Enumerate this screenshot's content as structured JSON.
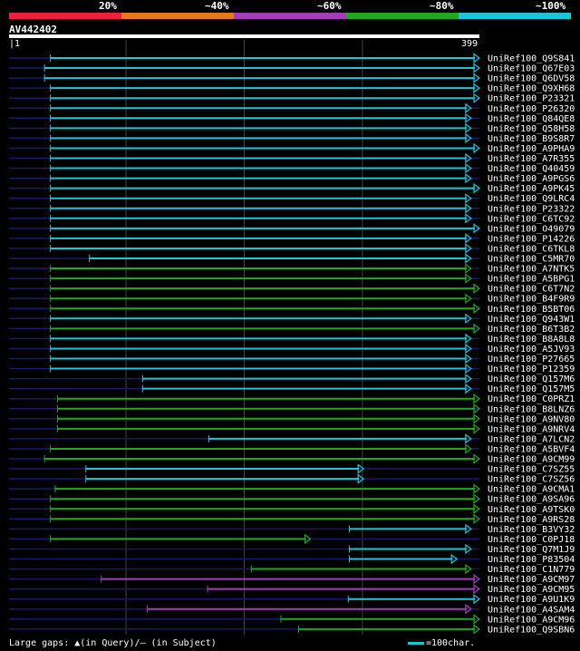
{
  "legend": {
    "segments": [
      {
        "color": "#ef1f3c",
        "label": "20%"
      },
      {
        "color": "#e8781e",
        "label": "~40%"
      },
      {
        "color": "#a33fb6",
        "label": "~60%"
      },
      {
        "color": "#22a81c",
        "label": "~80%"
      },
      {
        "color": "#1cc6d6",
        "label": "~100%"
      }
    ]
  },
  "query": {
    "name": "AV442402",
    "start": "1",
    "end": "399"
  },
  "colors": {
    "cyan": "#1cc6d6",
    "green": "#22a81c",
    "purple": "#a33fb6",
    "dash": "#1a1a6a",
    "grid": "#404040"
  },
  "chart_data": {
    "type": "alignment",
    "x_range": [
      1,
      399
    ],
    "hits": [
      {
        "name": "UniRef100_Q9S841",
        "start": 36,
        "end": 399,
        "color": "cyan"
      },
      {
        "name": "UniRef100_Q67E03",
        "start": 31,
        "end": 399,
        "color": "cyan"
      },
      {
        "name": "UniRef100_Q6DV58",
        "start": 31,
        "end": 399,
        "color": "cyan"
      },
      {
        "name": "UniRef100_Q9XH68",
        "start": 36,
        "end": 399,
        "color": "cyan"
      },
      {
        "name": "UniRef100_P23321",
        "start": 36,
        "end": 399,
        "color": "cyan"
      },
      {
        "name": "UniRef100_P26320",
        "start": 36,
        "end": 392,
        "color": "cyan"
      },
      {
        "name": "UniRef100_Q84QE8",
        "start": 36,
        "end": 392,
        "color": "cyan"
      },
      {
        "name": "UniRef100_Q58H58",
        "start": 36,
        "end": 392,
        "color": "cyan"
      },
      {
        "name": "UniRef100_B9S8R7",
        "start": 36,
        "end": 392,
        "color": "cyan"
      },
      {
        "name": "UniRef100_A9PHA9",
        "start": 36,
        "end": 399,
        "color": "cyan"
      },
      {
        "name": "UniRef100_A7R355",
        "start": 36,
        "end": 392,
        "color": "cyan"
      },
      {
        "name": "UniRef100_Q40459",
        "start": 36,
        "end": 392,
        "color": "cyan"
      },
      {
        "name": "UniRef100_A9PGS6",
        "start": 36,
        "end": 392,
        "color": "cyan"
      },
      {
        "name": "UniRef100_A9PK45",
        "start": 36,
        "end": 399,
        "color": "cyan"
      },
      {
        "name": "UniRef100_Q9LRC4",
        "start": 36,
        "end": 392,
        "color": "cyan"
      },
      {
        "name": "UniRef100_P23322",
        "start": 36,
        "end": 392,
        "color": "cyan"
      },
      {
        "name": "UniRef100_C6TC92",
        "start": 36,
        "end": 392,
        "color": "cyan"
      },
      {
        "name": "UniRef100_O49079",
        "start": 36,
        "end": 399,
        "color": "cyan"
      },
      {
        "name": "UniRef100_P14226",
        "start": 36,
        "end": 392,
        "color": "cyan"
      },
      {
        "name": "UniRef100_C6TKL8",
        "start": 36,
        "end": 392,
        "color": "cyan"
      },
      {
        "name": "UniRef100_C5MR70",
        "start": 69,
        "end": 392,
        "color": "cyan"
      },
      {
        "name": "UniRef100_A7NTK5",
        "start": 36,
        "end": 392,
        "color": "green"
      },
      {
        "name": "UniRef100_A5BPG1",
        "start": 36,
        "end": 392,
        "color": "green"
      },
      {
        "name": "UniRef100_C6T7N2",
        "start": 36,
        "end": 399,
        "color": "green"
      },
      {
        "name": "UniRef100_B4F9R9",
        "start": 36,
        "end": 392,
        "color": "green"
      },
      {
        "name": "UniRef100_B5BT06",
        "start": 36,
        "end": 399,
        "color": "green"
      },
      {
        "name": "UniRef100_Q943W1",
        "start": 36,
        "end": 392,
        "color": "cyan"
      },
      {
        "name": "UniRef100_B6T3B2",
        "start": 36,
        "end": 399,
        "color": "green"
      },
      {
        "name": "UniRef100_B8A8L8",
        "start": 36,
        "end": 392,
        "color": "cyan"
      },
      {
        "name": "UniRef100_A5JV93",
        "start": 36,
        "end": 392,
        "color": "cyan"
      },
      {
        "name": "UniRef100_P27665",
        "start": 36,
        "end": 392,
        "color": "cyan"
      },
      {
        "name": "UniRef100_P12359",
        "start": 36,
        "end": 392,
        "color": "cyan"
      },
      {
        "name": "UniRef100_Q157M6",
        "start": 114,
        "end": 392,
        "color": "cyan"
      },
      {
        "name": "UniRef100_Q157M5",
        "start": 114,
        "end": 392,
        "color": "cyan"
      },
      {
        "name": "UniRef100_C0PRZ1",
        "start": 42,
        "end": 399,
        "color": "green"
      },
      {
        "name": "UniRef100_B8LNZ6",
        "start": 42,
        "end": 399,
        "color": "green"
      },
      {
        "name": "UniRef100_A9NV80",
        "start": 42,
        "end": 399,
        "color": "green"
      },
      {
        "name": "UniRef100_A9NRV4",
        "start": 42,
        "end": 399,
        "color": "green"
      },
      {
        "name": "UniRef100_A7LCN2",
        "start": 170,
        "end": 392,
        "color": "cyan"
      },
      {
        "name": "UniRef100_A5BVF4",
        "start": 36,
        "end": 392,
        "color": "green"
      },
      {
        "name": "UniRef100_A9CM99",
        "start": 31,
        "end": 399,
        "color": "green"
      },
      {
        "name": "UniRef100_C7SZ55",
        "start": 66,
        "end": 301,
        "color": "cyan"
      },
      {
        "name": "UniRef100_C7SZ56",
        "start": 66,
        "end": 301,
        "color": "cyan"
      },
      {
        "name": "UniRef100_A9CMA1",
        "start": 40,
        "end": 399,
        "color": "green"
      },
      {
        "name": "UniRef100_A9SA96",
        "start": 36,
        "end": 399,
        "color": "green"
      },
      {
        "name": "UniRef100_A9TSK0",
        "start": 36,
        "end": 399,
        "color": "green"
      },
      {
        "name": "UniRef100_A9RS28",
        "start": 36,
        "end": 399,
        "color": "green"
      },
      {
        "name": "UniRef100_B3VY32",
        "start": 289,
        "end": 392,
        "color": "cyan"
      },
      {
        "name": "UniRef100_C0PJ18",
        "start": 36,
        "end": 256,
        "color": "green"
      },
      {
        "name": "UniRef100_Q7M1J9",
        "start": 289,
        "end": 392,
        "color": "cyan"
      },
      {
        "name": "UniRef100_P83504",
        "start": 289,
        "end": 380,
        "color": "cyan"
      },
      {
        "name": "UniRef100_C1N779",
        "start": 206,
        "end": 392,
        "color": "green"
      },
      {
        "name": "UniRef100_A9CM97",
        "start": 79,
        "end": 399,
        "color": "purple"
      },
      {
        "name": "UniRef100_A9CM95",
        "start": 169,
        "end": 399,
        "color": "purple"
      },
      {
        "name": "UniRef100_A9U1K9",
        "start": 288,
        "end": 399,
        "color": "cyan"
      },
      {
        "name": "UniRef100_A4SAM4",
        "start": 118,
        "end": 392,
        "color": "purple"
      },
      {
        "name": "UniRef100_A9CM96",
        "start": 231,
        "end": 399,
        "color": "green"
      },
      {
        "name": "UniRef100_Q9SBN6",
        "start": 246,
        "end": 399,
        "color": "green"
      }
    ]
  },
  "footer": {
    "gaps_label": "Large gaps: ▲(in Query)/– (in Subject)",
    "scale_label": "=100char."
  }
}
